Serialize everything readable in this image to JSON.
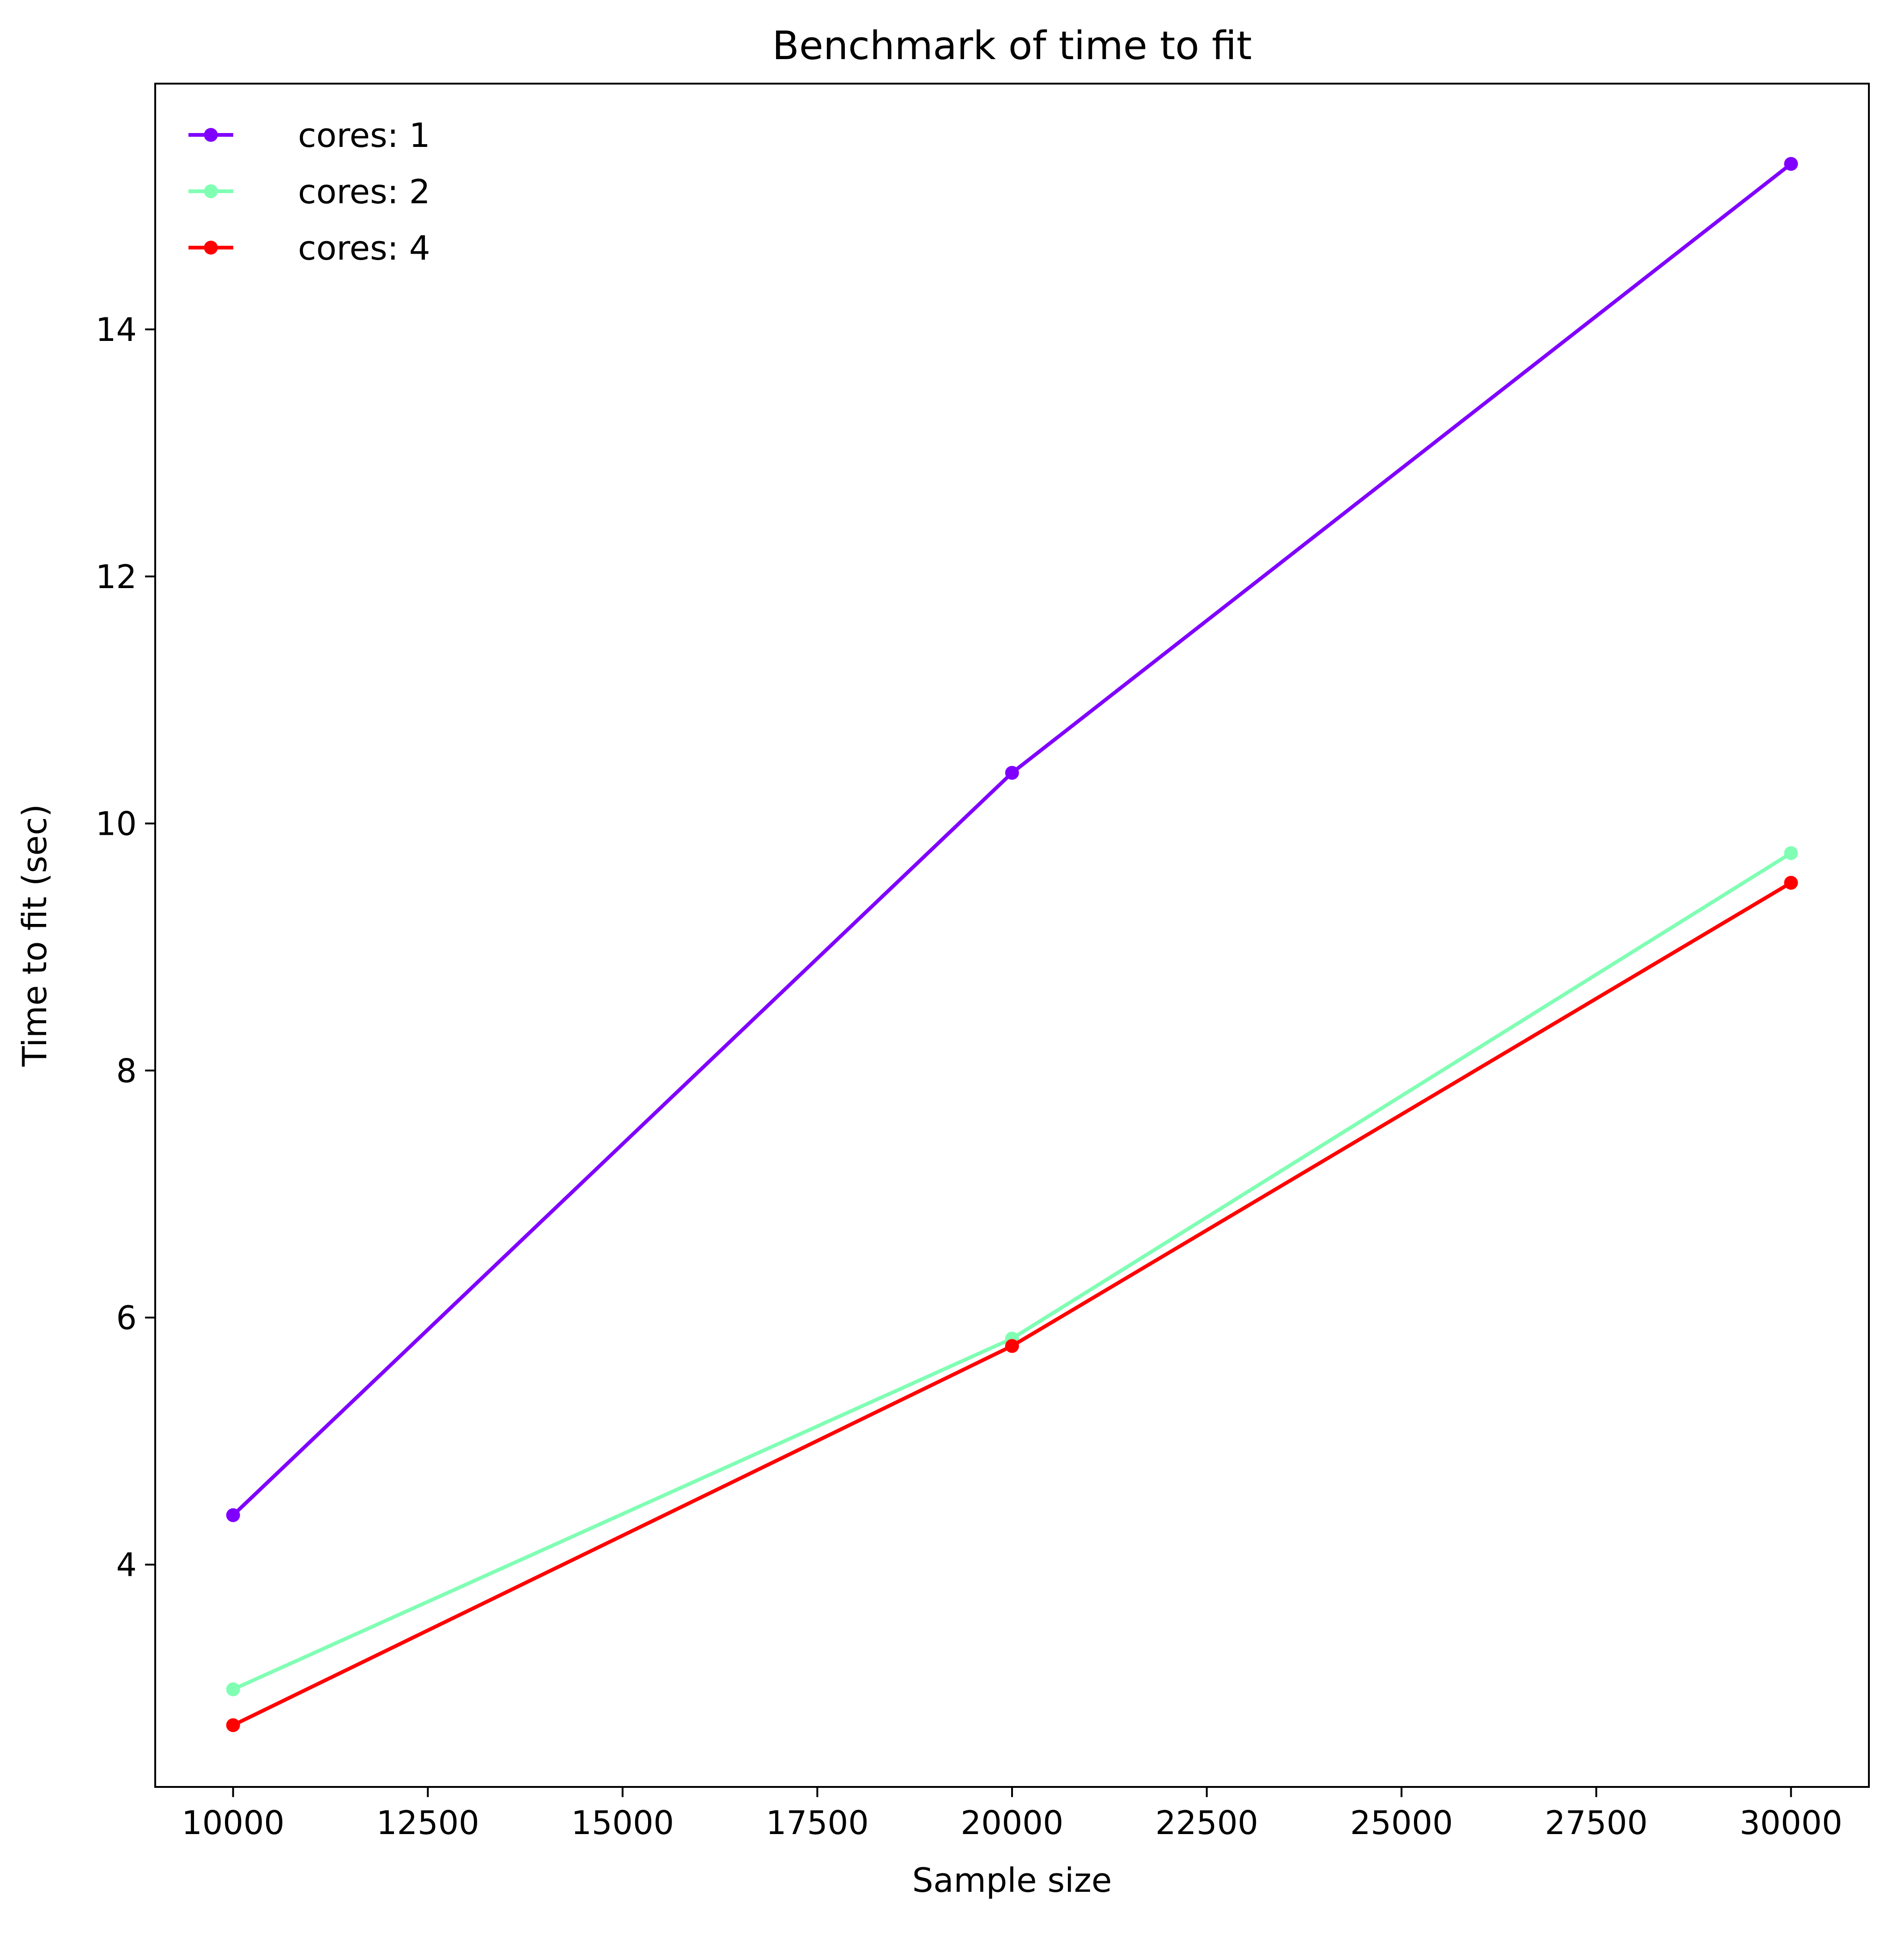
{
  "chart_data": {
    "type": "line",
    "title": "Benchmark of time to fit",
    "xlabel": "Sample size",
    "ylabel": "Time to fit (sec)",
    "x": [
      10000,
      20000,
      30000
    ],
    "xlim": [
      9000,
      31000
    ],
    "ylim": [
      2.2,
      15.99
    ],
    "xticks": [
      10000,
      12500,
      15000,
      17500,
      20000,
      22500,
      25000,
      27500,
      30000
    ],
    "yticks": [
      4,
      6,
      8,
      10,
      12,
      14
    ],
    "grid": false,
    "legend_position": "top-left",
    "series": [
      {
        "name": "cores: 1",
        "color": "#8000ff",
        "marker": "circle",
        "values": [
          4.4,
          10.41,
          15.34
        ]
      },
      {
        "name": "cores: 2",
        "color": "#80ffb4",
        "marker": "circle",
        "values": [
          2.99,
          5.83,
          9.76
        ]
      },
      {
        "name": "cores: 4",
        "color": "#ff0000",
        "marker": "circle",
        "values": [
          2.7,
          5.77,
          9.52
        ]
      }
    ]
  }
}
